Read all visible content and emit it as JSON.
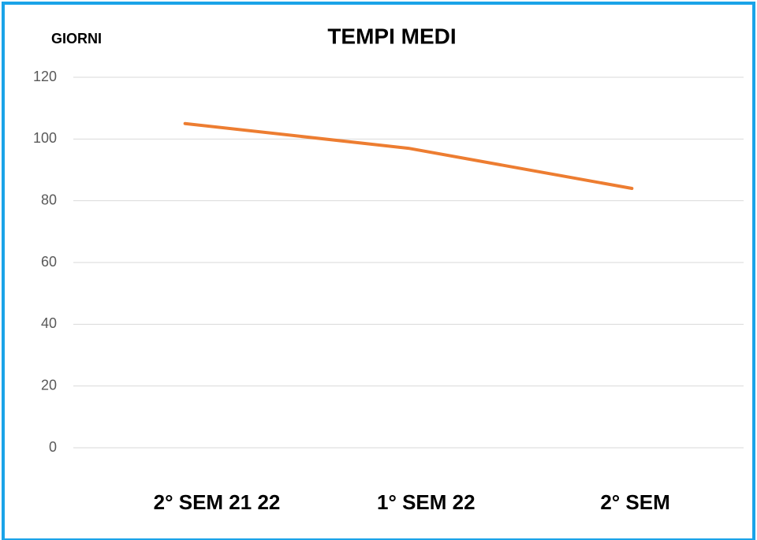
{
  "chart_data": {
    "type": "line",
    "title": "TEMPI MEDI",
    "y_label": "GIORNI",
    "categories": [
      "2° SEM 21 22",
      "1° SEM 22",
      "2° SEM"
    ],
    "series": [
      {
        "name": "TEMPI MEDI",
        "color": "#ed7d31",
        "values": [
          105,
          97,
          84
        ]
      }
    ],
    "ylim": [
      0,
      120
    ],
    "yticks": [
      0,
      20,
      40,
      60,
      80,
      100,
      120
    ],
    "grid": true
  }
}
